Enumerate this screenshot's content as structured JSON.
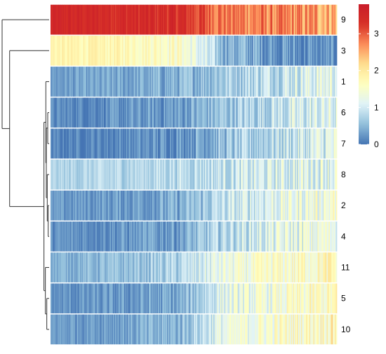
{
  "chart_data": {
    "type": "heatmap",
    "title": "",
    "xlabel": "",
    "ylabel": "",
    "row_labels": [
      "9",
      "3",
      "1",
      "6",
      "7",
      "8",
      "2",
      "4",
      "11",
      "5",
      "10"
    ],
    "column_profile_breakpoints": [
      0,
      0.25,
      0.45,
      0.6,
      0.8,
      1.0
    ],
    "row_profiles": [
      {
        "row": "9",
        "values": [
          3.45,
          3.4,
          3.35,
          2.85,
          2.7,
          2.55
        ]
      },
      {
        "row": "3",
        "values": [
          1.8,
          1.75,
          1.6,
          0.55,
          0.25,
          0.0
        ]
      },
      {
        "row": "1",
        "values": [
          0.3,
          0.35,
          0.45,
          0.7,
          0.95,
          1.25
        ]
      },
      {
        "row": "6",
        "values": [
          0.15,
          0.2,
          0.3,
          0.6,
          0.9,
          1.1
        ]
      },
      {
        "row": "7",
        "values": [
          0.1,
          0.15,
          0.25,
          0.55,
          0.85,
          1.15
        ]
      },
      {
        "row": "8",
        "values": [
          0.75,
          0.8,
          0.85,
          0.9,
          1.05,
          1.25
        ]
      },
      {
        "row": "2",
        "values": [
          0.25,
          0.3,
          0.4,
          0.85,
          1.2,
          1.45
        ]
      },
      {
        "row": "4",
        "values": [
          0.2,
          0.25,
          0.35,
          0.8,
          1.15,
          1.35
        ]
      },
      {
        "row": "11",
        "values": [
          0.45,
          0.55,
          0.75,
          1.25,
          1.5,
          1.7
        ]
      },
      {
        "row": "5",
        "values": [
          0.2,
          0.25,
          0.35,
          1.15,
          1.4,
          1.6
        ]
      },
      {
        "row": "10",
        "values": [
          0.3,
          0.35,
          0.5,
          1.2,
          1.5,
          1.8
        ]
      }
    ],
    "dendrogram": {
      "leaves": [
        "9",
        "3",
        "1",
        "6",
        "7",
        "8",
        "2",
        "4",
        "11",
        "5",
        "10"
      ],
      "merges": [
        {
          "a": "9",
          "b": "3|1|6|7|8|2|4|11|5|10",
          "height": 1.0
        },
        {
          "a": "3",
          "b": "1|6|7|8|2|4|11|5|10",
          "height": 0.84
        },
        {
          "a": "1|6|7|8|2|4",
          "b": "11|5|10",
          "height": 0.11
        },
        {
          "a": "1",
          "b": "6|7|8|2|4",
          "height": 0.07
        },
        {
          "a": "6|7",
          "b": "8|2|4",
          "height": 0.06
        },
        {
          "a": "6",
          "b": "7",
          "height": 0.03
        },
        {
          "a": "8",
          "b": "2|4",
          "height": 0.04
        },
        {
          "a": "2",
          "b": "4",
          "height": 0.02
        },
        {
          "a": "11",
          "b": "5|10",
          "height": 0.08
        },
        {
          "a": "5",
          "b": "10",
          "height": 0.05
        }
      ]
    },
    "colorbar": {
      "min": 0,
      "max": 3.8,
      "ticks": [
        0,
        1,
        2,
        3
      ],
      "tick_labels": [
        "0",
        "1",
        "2",
        "3"
      ],
      "palette": [
        "#4575b4",
        "#91bfdb",
        "#e0f3f8",
        "#ffffbf",
        "#fee090",
        "#fc8d59",
        "#d73027",
        "#c91d2a"
      ]
    },
    "grid": false,
    "legend_position": "top-right"
  }
}
